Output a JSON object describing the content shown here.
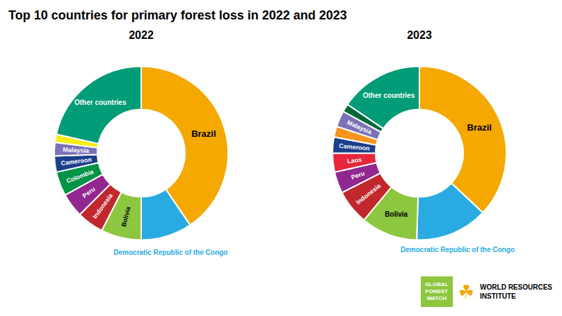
{
  "title": "Top 10 countries for primary forest loss in 2022 and 2023",
  "annotations": [
    "GLOBAL\nFOREST\nWATCH",
    "☘",
    "WORLD RESOURCES",
    "INSTITUTE"
  ],
  "chart_data": [
    {
      "type": "pie",
      "title": "2022",
      "categories": [
        "Brazil",
        "Democratic Republic of the Congo",
        "Bolivia",
        "Indonesia",
        "Peru",
        "Colombia",
        "Cameroon",
        "Malaysia",
        null,
        "Other countries"
      ],
      "values": [
        40.5,
        9.5,
        7.5,
        5.0,
        4.5,
        4.5,
        3.0,
        2.5,
        1.5,
        21.5
      ],
      "colors": [
        "#F5A800",
        "#29ABE2",
        "#8DC63F",
        "#C1272D",
        "#92278F",
        "#009245",
        "#1B3F8B",
        "#7B72B7",
        "#F7EC13",
        "#009B77"
      ]
    },
    {
      "type": "pie",
      "title": "2023",
      "categories": [
        "Brazil",
        "Democratic Republic of the Congo",
        "Bolivia",
        "Indonesia",
        "Peru",
        "Laos",
        "Cameroon",
        null,
        "Malaysia",
        null,
        "Other countries"
      ],
      "values": [
        37.0,
        13.5,
        10.5,
        6.5,
        4.0,
        3.5,
        3.0,
        2.0,
        3.0,
        1.5,
        15.5
      ],
      "colors": [
        "#F5A800",
        "#29ABE2",
        "#8DC63F",
        "#C1272D",
        "#92278F",
        "#E8273A",
        "#1B3F8B",
        "#F7941D",
        "#7B72B7",
        "#006838",
        "#009B77"
      ]
    }
  ]
}
